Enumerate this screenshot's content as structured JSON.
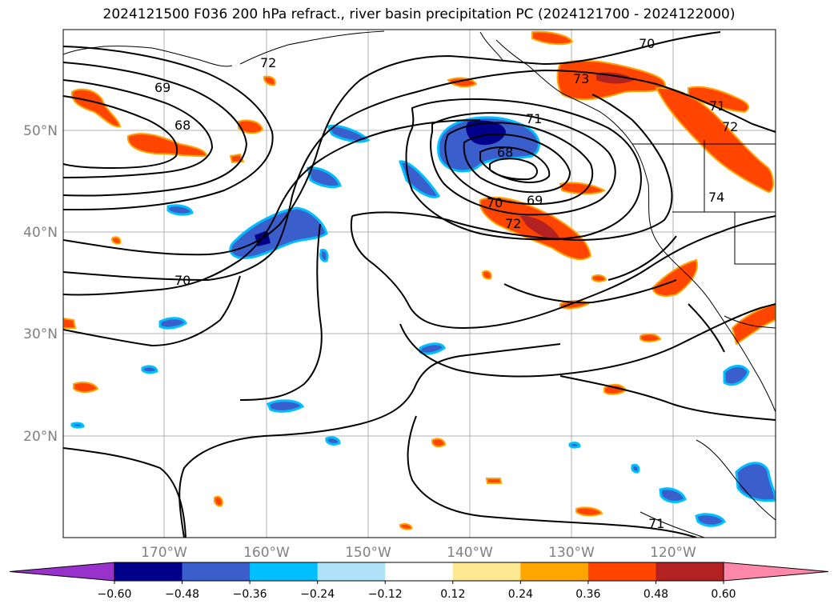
{
  "title": "2024121500 F036 200 hPa refract., river basin precipitation PC (2024121700 - 2024122000)",
  "lat_labels": [
    "50°N",
    "40°N",
    "30°N",
    "20°N"
  ],
  "lon_labels": [
    "170°W",
    "160°W",
    "150°W",
    "140°W",
    "130°W",
    "120°W"
  ],
  "contour_labels": [
    "72",
    "69",
    "68",
    "70",
    "71",
    "68",
    "70",
    "69",
    "72",
    "73",
    "71",
    "72",
    "70",
    "74",
    "71"
  ],
  "colorbar": {
    "tick_labels": [
      "−0.60",
      "−0.48",
      "−0.36",
      "−0.24",
      "−0.12",
      "0.12",
      "0.24",
      "0.36",
      "0.48",
      "0.60"
    ],
    "colors": [
      "#9932cc",
      "#00008b",
      "#3a5fcd",
      "#00bfff",
      "#afe1f8",
      "#ffffff",
      "#fee892",
      "#ffa500",
      "#ff4500",
      "#b22222",
      "#ff88aa"
    ]
  }
}
